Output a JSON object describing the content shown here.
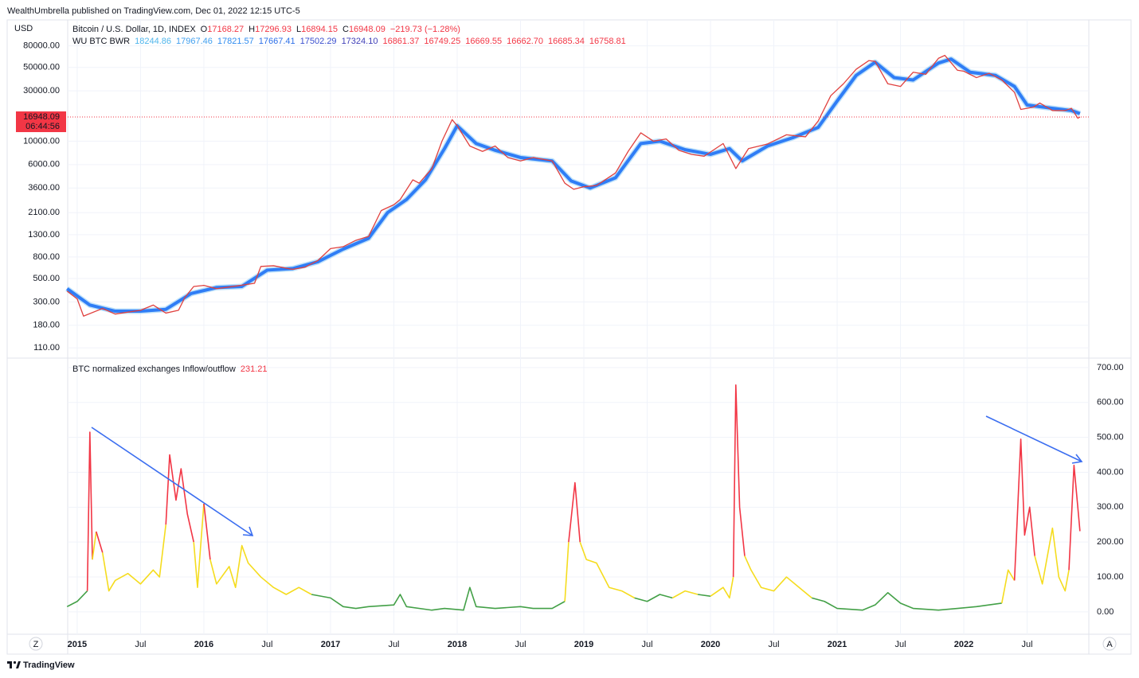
{
  "header": "WealthUmbrella published on TradingView.com, Dec 01, 2022 12:15 UTC-5",
  "footer": "TradingView",
  "scale_buttons": [
    "Z",
    "A"
  ],
  "chart_data": [
    {
      "type": "line",
      "title": "Bitcoin / U.S. Dollar, 1D, INDEX",
      "ohlc": [
        {
          "key": "O",
          "value": "17168.27"
        },
        {
          "key": "H",
          "value": "17296.93"
        },
        {
          "key": "L",
          "value": "16894.15"
        },
        {
          "key": "C",
          "value": "16948.09"
        }
      ],
      "change": "−219.73 (−1.28%)",
      "ylabel": "USD",
      "log_scale": true,
      "grid": true,
      "xlim": [
        2014.925,
        2022.987
      ],
      "ylim": [
        88,
        141000
      ],
      "yticks": [
        {
          "value": 80000,
          "label": "80000.00"
        },
        {
          "value": 50000,
          "label": "50000.00"
        },
        {
          "value": 30000,
          "label": "30000.00"
        },
        {
          "value": 10000,
          "label": "10000.00"
        },
        {
          "value": 6000,
          "label": "6000.00"
        },
        {
          "value": 3600,
          "label": "3600.00"
        },
        {
          "value": 2100,
          "label": "2100.00"
        },
        {
          "value": 1300,
          "label": "1300.00"
        },
        {
          "value": 800,
          "label": "800.00"
        },
        {
          "value": 500,
          "label": "500.00"
        },
        {
          "value": 300,
          "label": "300.00"
        },
        {
          "value": 180,
          "label": "180.00"
        },
        {
          "value": 110,
          "label": "110.00"
        }
      ],
      "last_price": {
        "value": 16948.09,
        "label": "16948.09",
        "countdown": "06:44:56",
        "color": "#f23645"
      },
      "series": [
        {
          "color": "#2f7df6",
          "name": "WU BTC BWR",
          "legend_values": [
            {
              "text": "18244.86",
              "color": "#4fb6ec"
            },
            {
              "text": "17967.46",
              "color": "#42a0ef"
            },
            {
              "text": "17821.57",
              "color": "#2f8cf0"
            },
            {
              "text": "17667.41",
              "color": "#2c6fe8"
            },
            {
              "text": "17502.29",
              "color": "#3a4fcf"
            },
            {
              "text": "17324.10",
              "color": "#3f3fb8"
            },
            {
              "text": "16861.37",
              "color": "#f23645"
            },
            {
              "text": "16749.25",
              "color": "#f23645"
            },
            {
              "text": "16669.55",
              "color": "#f23645"
            },
            {
              "text": "16662.70",
              "color": "#f23645"
            },
            {
              "text": "16685.34",
              "color": "#f23645"
            },
            {
              "text": "16758.81",
              "color": "#f23645"
            }
          ],
          "x": [
            2014.92,
            2015.1,
            2015.3,
            2015.5,
            2015.7,
            2015.9,
            2016.1,
            2016.3,
            2016.5,
            2016.7,
            2016.9,
            2017.1,
            2017.3,
            2017.45,
            2017.6,
            2017.75,
            2017.9,
            2018.0,
            2018.15,
            2018.3,
            2018.5,
            2018.75,
            2018.9,
            2019.05,
            2019.25,
            2019.45,
            2019.6,
            2019.8,
            2020.0,
            2020.15,
            2020.25,
            2020.45,
            2020.65,
            2020.85,
            2021.0,
            2021.15,
            2021.3,
            2021.45,
            2021.6,
            2021.8,
            2021.9,
            2022.05,
            2022.25,
            2022.4,
            2022.5,
            2022.7,
            2022.85,
            2022.917
          ],
          "values": [
            400,
            280,
            245,
            245,
            255,
            360,
            410,
            420,
            600,
            620,
            720,
            950,
            1200,
            2100,
            2800,
            4300,
            8500,
            14000,
            9500,
            8200,
            7000,
            6500,
            4200,
            3600,
            4500,
            9500,
            10000,
            8300,
            7500,
            8500,
            6500,
            9000,
            10800,
            13500,
            24000,
            42000,
            56000,
            40000,
            38000,
            55000,
            60000,
            45000,
            42000,
            33000,
            22000,
            20500,
            19500,
            18244.86
          ]
        },
        {
          "color": "#e0413f",
          "x": [
            2014.92,
            2015.0,
            2015.05,
            2015.2,
            2015.3,
            2015.5,
            2015.6,
            2015.7,
            2015.8,
            2015.85,
            2015.92,
            2016.0,
            2016.1,
            2016.2,
            2016.4,
            2016.45,
            2016.55,
            2016.7,
            2016.8,
            2016.9,
            2017.0,
            2017.1,
            2017.2,
            2017.3,
            2017.4,
            2017.5,
            2017.55,
            2017.65,
            2017.7,
            2017.8,
            2017.88,
            2017.96,
            2018.0,
            2018.1,
            2018.2,
            2018.3,
            2018.4,
            2018.5,
            2018.6,
            2018.75,
            2018.85,
            2018.92,
            2019.0,
            2019.1,
            2019.25,
            2019.35,
            2019.45,
            2019.55,
            2019.65,
            2019.75,
            2019.85,
            2019.95,
            2020.1,
            2020.2,
            2020.3,
            2020.45,
            2020.6,
            2020.75,
            2020.85,
            2020.95,
            2021.05,
            2021.15,
            2021.25,
            2021.3,
            2021.4,
            2021.5,
            2021.6,
            2021.7,
            2021.8,
            2021.85,
            2021.95,
            2022.0,
            2022.1,
            2022.2,
            2022.3,
            2022.4,
            2022.45,
            2022.55,
            2022.6,
            2022.7,
            2022.8,
            2022.85,
            2022.9,
            2022.917
          ],
          "values": [
            380,
            320,
            220,
            260,
            230,
            250,
            280,
            235,
            250,
            330,
            420,
            430,
            400,
            415,
            450,
            650,
            660,
            610,
            640,
            740,
            960,
            1000,
            1150,
            1250,
            2200,
            2500,
            2800,
            4300,
            4000,
            5500,
            10000,
            16000,
            14000,
            9000,
            8000,
            9000,
            7000,
            6500,
            7000,
            6500,
            4000,
            3500,
            3700,
            3800,
            5000,
            8000,
            12000,
            10000,
            10500,
            8200,
            7500,
            7200,
            9500,
            5500,
            8500,
            9400,
            11500,
            11000,
            15500,
            27000,
            35000,
            48000,
            58000,
            57000,
            35000,
            33000,
            45000,
            43000,
            61000,
            65000,
            47000,
            46000,
            40000,
            44000,
            38000,
            29000,
            20000,
            21000,
            23000,
            19500,
            19500,
            20500,
            16500,
            16948.09
          ]
        }
      ]
    },
    {
      "type": "line",
      "title": "BTC normalized exchanges Inflow/outflow",
      "last_label": "231.21",
      "last_color": "#f23645",
      "grid": true,
      "xlim": [
        2014.925,
        2022.987
      ],
      "ylim": [
        -64,
        727
      ],
      "yticks": [
        {
          "value": 700,
          "label": "700.00"
        },
        {
          "value": 600,
          "label": "600.00"
        },
        {
          "value": 500,
          "label": "500.00"
        },
        {
          "value": 400,
          "label": "400.00"
        },
        {
          "value": 300,
          "label": "300.00"
        },
        {
          "value": 200,
          "label": "200.00"
        },
        {
          "value": 100,
          "label": "100.00"
        },
        {
          "value": 0,
          "label": "0.00"
        }
      ],
      "xticks": [
        2015,
        {
          "value": 2015.5,
          "label": "Jul"
        },
        2016,
        {
          "value": 2016.5,
          "label": "Jul"
        },
        2017,
        {
          "value": 2017.5,
          "label": "Jul"
        },
        2018,
        {
          "value": 2018.5,
          "label": "Jul"
        },
        2019,
        {
          "value": 2019.5,
          "label": "Jul"
        },
        2020,
        {
          "value": 2020.5,
          "label": "Jul"
        },
        2021,
        {
          "value": 2021.5,
          "label": "Jul"
        },
        2022,
        {
          "value": 2022.5,
          "label": "Jul"
        }
      ],
      "color_levels": [
        {
          "below": 50,
          "color": "#43a047"
        },
        {
          "below": 200,
          "color": "#f5dc1e"
        },
        {
          "color": "#f23645"
        }
      ],
      "series": [
        {
          "x": [
            2014.92,
            2015.0,
            2015.08,
            2015.1,
            2015.12,
            2015.15,
            2015.2,
            2015.25,
            2015.3,
            2015.4,
            2015.5,
            2015.6,
            2015.65,
            2015.7,
            2015.73,
            2015.78,
            2015.82,
            2015.87,
            2015.92,
            2015.95,
            2016.0,
            2016.05,
            2016.1,
            2016.2,
            2016.25,
            2016.3,
            2016.35,
            2016.45,
            2016.55,
            2016.65,
            2016.75,
            2016.85,
            2017.0,
            2017.1,
            2017.2,
            2017.3,
            2017.5,
            2017.55,
            2017.6,
            2017.8,
            2017.9,
            2018.05,
            2018.1,
            2018.15,
            2018.3,
            2018.5,
            2018.6,
            2018.75,
            2018.85,
            2018.88,
            2018.93,
            2018.97,
            2019.02,
            2019.1,
            2019.2,
            2019.3,
            2019.4,
            2019.5,
            2019.6,
            2019.7,
            2019.8,
            2019.9,
            2020.0,
            2020.1,
            2020.15,
            2020.18,
            2020.2,
            2020.23,
            2020.27,
            2020.32,
            2020.4,
            2020.5,
            2020.6,
            2020.7,
            2020.8,
            2020.9,
            2021.0,
            2021.2,
            2021.3,
            2021.4,
            2021.5,
            2021.6,
            2021.8,
            2021.95,
            2022.1,
            2022.3,
            2022.35,
            2022.4,
            2022.45,
            2022.48,
            2022.52,
            2022.56,
            2022.62,
            2022.7,
            2022.75,
            2022.8,
            2022.83,
            2022.87,
            2022.9,
            2022.917
          ],
          "values": [
            15,
            30,
            60,
            515,
            150,
            230,
            170,
            60,
            90,
            110,
            80,
            120,
            100,
            250,
            450,
            320,
            410,
            280,
            200,
            70,
            310,
            150,
            80,
            130,
            70,
            190,
            140,
            100,
            70,
            50,
            70,
            50,
            40,
            15,
            10,
            15,
            20,
            50,
            15,
            5,
            10,
            5,
            70,
            15,
            10,
            15,
            10,
            10,
            30,
            200,
            370,
            200,
            150,
            140,
            70,
            60,
            40,
            30,
            50,
            40,
            60,
            50,
            45,
            70,
            40,
            100,
            650,
            300,
            160,
            120,
            70,
            60,
            100,
            70,
            40,
            30,
            10,
            5,
            20,
            55,
            25,
            10,
            5,
            10,
            15,
            25,
            120,
            90,
            495,
            220,
            300,
            160,
            80,
            240,
            100,
            60,
            120,
            420,
            300,
            231.21
          ]
        }
      ]
    }
  ]
}
